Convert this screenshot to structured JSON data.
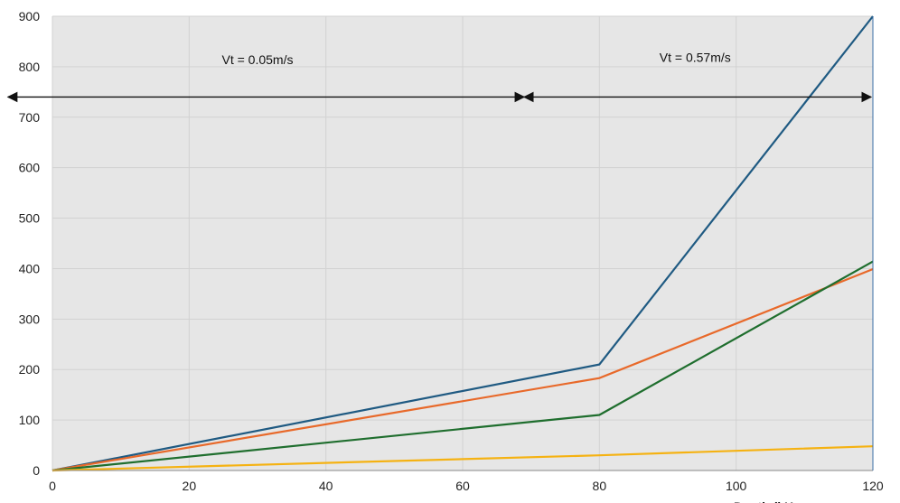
{
  "chart_data": {
    "type": "line",
    "title": "",
    "xlabel": "Depth (kHz",
    "ylabel": "",
    "xlim": [
      0,
      120
    ],
    "ylim": [
      0,
      900
    ],
    "x_ticks": [
      0,
      20,
      40,
      60,
      80,
      100,
      120
    ],
    "y_ticks": [
      0,
      100,
      200,
      300,
      400,
      500,
      600,
      700,
      800,
      900
    ],
    "grid": true,
    "background": "#e6e6e6",
    "series": [
      {
        "color": "#1f5a82",
        "x": [
          0,
          80,
          120
        ],
        "y": [
          0,
          210,
          900
        ]
      },
      {
        "color": "#e8692a",
        "x": [
          0,
          80,
          120
        ],
        "y": [
          0,
          183,
          399
        ]
      },
      {
        "color": "#1f6e2e",
        "x": [
          0,
          80,
          120
        ],
        "y": [
          0,
          110,
          414
        ]
      },
      {
        "color": "#f5b212",
        "x": [
          0,
          80,
          120
        ],
        "y": [
          0,
          30,
          48
        ]
      }
    ],
    "annotations": [
      {
        "text": "Vt = 0.05m/s",
        "x_from": -6.5,
        "x_to": 69,
        "y_arrow": 740,
        "text_x": 30,
        "text_y": 805
      },
      {
        "text": "Vt = 0.57m/s",
        "x_from": 69,
        "x_to": 120,
        "y_arrow": 740,
        "text_x": 94,
        "text_y": 810
      }
    ]
  }
}
